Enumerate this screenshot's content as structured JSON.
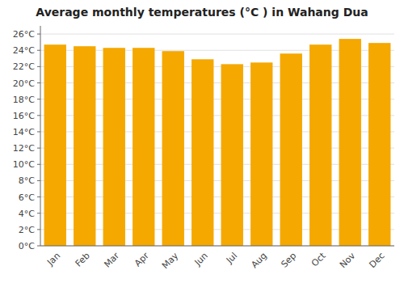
{
  "chart_data": {
    "type": "bar",
    "title": "Average monthly temperatures (°C ) in Wahang Dua",
    "categories": [
      "Jan",
      "Feb",
      "Mar",
      "Apr",
      "May",
      "Jun",
      "Jul",
      "Aug",
      "Sep",
      "Oct",
      "Nov",
      "Dec"
    ],
    "values": [
      24.7,
      24.5,
      24.3,
      24.3,
      23.9,
      22.9,
      22.3,
      22.5,
      23.6,
      24.7,
      25.4,
      24.9
    ],
    "color": "#F5A800",
    "ylim": [
      0,
      27
    ],
    "yticks": [
      {
        "value": 0,
        "label": "0°C"
      },
      {
        "value": 2,
        "label": "2°C"
      },
      {
        "value": 4,
        "label": "4°C"
      },
      {
        "value": 6,
        "label": "6°C"
      },
      {
        "value": 8,
        "label": "8°C"
      },
      {
        "value": 10,
        "label": "10°C"
      },
      {
        "value": 12,
        "label": "12°C"
      },
      {
        "value": 14,
        "label": "14°C"
      },
      {
        "value": 16,
        "label": "16°C"
      },
      {
        "value": 18,
        "label": "18°C"
      },
      {
        "value": 20,
        "label": "20°C"
      },
      {
        "value": 22,
        "label": "22°C"
      },
      {
        "value": 24,
        "label": "24°C"
      },
      {
        "value": 26,
        "label": "26°C"
      }
    ],
    "grid": true
  }
}
